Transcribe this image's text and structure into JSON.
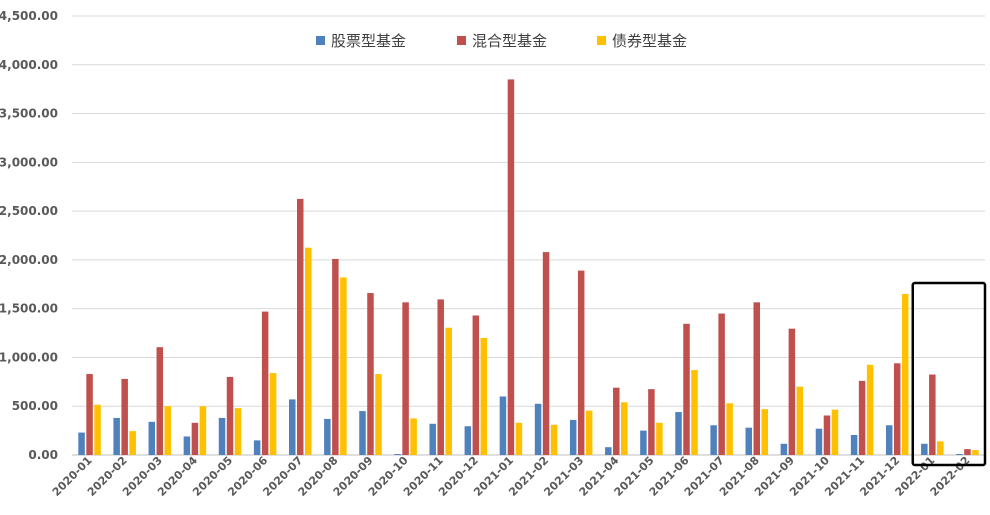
{
  "chart_data": {
    "type": "bar",
    "title": "",
    "xlabel": "",
    "ylabel": "",
    "ylim": [
      0,
      4500
    ],
    "ytick_labels": [
      "0.00",
      "500.00",
      "1,000.00",
      "1,500.00",
      "2,000.00",
      "2,500.00",
      "3,000.00",
      "3,500.00",
      "4,000.00",
      "4,500.00"
    ],
    "ytick_values": [
      0,
      500,
      1000,
      1500,
      2000,
      2500,
      3000,
      3500,
      4000,
      4500
    ],
    "grid": true,
    "legend_position": "top-center",
    "highlight": {
      "type": "rectangle",
      "categories": [
        "2022-01",
        "2022-02"
      ]
    },
    "categories": [
      "2020-01",
      "2020-02",
      "2020-03",
      "2020-04",
      "2020-05",
      "2020-06",
      "2020-07",
      "2020-08",
      "2020-09",
      "2020-10",
      "2020-11",
      "2020-12",
      "2021-01",
      "2021-02",
      "2021-03",
      "2021-04",
      "2021-05",
      "2021-06",
      "2021-07",
      "2021-08",
      "2021-09",
      "2021-10",
      "2021-11",
      "2021-12",
      "2022-01",
      "2022-02"
    ],
    "series": [
      {
        "name": "股票型基金",
        "color": "#4f81bd",
        "values": [
          230,
          380,
          340,
          190,
          380,
          150,
          570,
          370,
          450,
          10,
          320,
          295,
          600,
          525,
          360,
          80,
          250,
          440,
          305,
          280,
          115,
          270,
          205,
          305,
          115,
          10
        ]
      },
      {
        "name": "混合型基金",
        "color": "#c0504d",
        "values": [
          830,
          780,
          1105,
          330,
          800,
          1470,
          2625,
          2010,
          1660,
          1565,
          1595,
          1430,
          3850,
          2080,
          1890,
          690,
          675,
          1345,
          1450,
          1565,
          1295,
          405,
          760,
          940,
          825,
          60
        ]
      },
      {
        "name": "债券型基金",
        "color": "#ffc000",
        "values": [
          515,
          245,
          500,
          500,
          480,
          840,
          2125,
          1820,
          830,
          375,
          1305,
          1200,
          330,
          310,
          455,
          540,
          330,
          870,
          530,
          470,
          700,
          465,
          925,
          1650,
          140,
          50
        ]
      }
    ]
  }
}
